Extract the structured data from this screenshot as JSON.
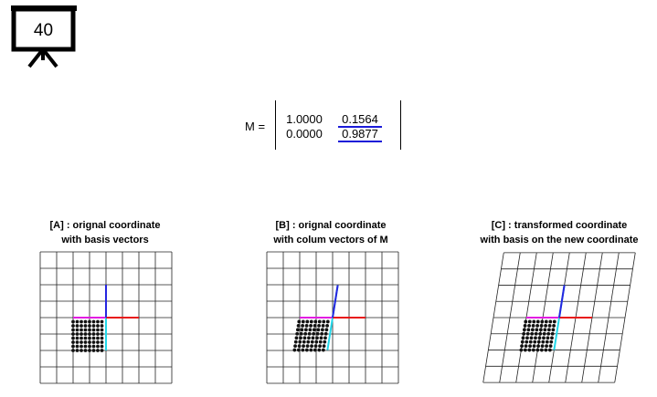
{
  "slide": {
    "number": "40"
  },
  "matrix": {
    "label": "M =",
    "rows": [
      [
        "1.0000",
        "0.1564"
      ],
      [
        "0.0000",
        "0.9877"
      ]
    ]
  },
  "panels": [
    {
      "title_line1": "[A] : orignal coordinate",
      "title_line2": "with basis vectors"
    },
    {
      "title_line1": "[B] : orignal coordinate",
      "title_line2": "with colum vectors of M"
    },
    {
      "title_line1": "[C] : transformed coordinate",
      "title_line2": "with basis on the new coordinate"
    }
  ],
  "colors": {
    "q1": "#f5f53a",
    "q2": "#3be03b",
    "q3": "#111111",
    "q4": "#2424dc",
    "basis_x": "#e81818",
    "basis_y": "#2626e0",
    "axis_x": "#e21be2",
    "axis_y": "#22d8ea"
  }
}
